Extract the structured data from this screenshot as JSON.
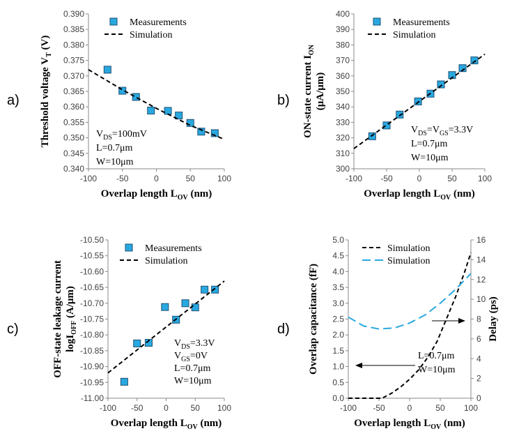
{
  "chart_data": [
    {
      "id": "a",
      "type": "scatter",
      "panel_label": "a)",
      "ylabel": "Threshold voltage V",
      "ylabel_sub": "T",
      "ylabel_unit": " (V)",
      "xlabel": "Overlap length L",
      "xlabel_sub": "OV",
      "xlabel_unit": " (nm)",
      "xlim": [
        -100,
        100
      ],
      "ylim": [
        0.34,
        0.39
      ],
      "xticks": [
        -100,
        -50,
        0,
        50,
        100
      ],
      "yticks": [
        0.34,
        0.345,
        0.35,
        0.355,
        0.36,
        0.365,
        0.37,
        0.375,
        0.38,
        0.385,
        0.39
      ],
      "ytick_decimals": 3,
      "legend": [
        "Measurements",
        "Simulation"
      ],
      "series": [
        {
          "name": "Measurements",
          "kind": "marker",
          "x": [
            -72,
            -50,
            -30,
            -8,
            17,
            33,
            50,
            66,
            86
          ],
          "y": [
            0.372,
            0.3652,
            0.3632,
            0.3588,
            0.3587,
            0.3572,
            0.3548,
            0.352,
            0.3515
          ]
        },
        {
          "name": "Simulation",
          "kind": "dashed",
          "x": [
            -100,
            -50,
            0,
            50,
            100
          ],
          "y": [
            0.372,
            0.3655,
            0.3595,
            0.354,
            0.3495
          ]
        }
      ],
      "annotations": [
        {
          "text": "V",
          "sub": "DS",
          "rest": "=100mV"
        },
        {
          "text": "L=0.7μm"
        },
        {
          "text": "W=10μm"
        }
      ]
    },
    {
      "id": "b",
      "type": "scatter",
      "panel_label": "b)",
      "ylabel": "ON-state current I",
      "ylabel_sub": "ON",
      "ylabel_line2": "(μA/μm)",
      "xlabel": "Overlap length L",
      "xlabel_sub": "OV",
      "xlabel_unit": " (nm)",
      "xlim": [
        -100,
        100
      ],
      "ylim": [
        300,
        400
      ],
      "xticks": [
        -100,
        -50,
        0,
        50,
        100
      ],
      "yticks": [
        300,
        310,
        320,
        330,
        340,
        350,
        360,
        370,
        380,
        390,
        400
      ],
      "ytick_decimals": 0,
      "legend": [
        "Measurements",
        "Simulation"
      ],
      "series": [
        {
          "name": "Measurements",
          "kind": "marker",
          "x": [
            -72,
            -50,
            -30,
            -2,
            17,
            33,
            50,
            66,
            84
          ],
          "y": [
            321,
            328,
            335,
            343.5,
            348.5,
            354.5,
            360.5,
            365,
            370
          ]
        },
        {
          "name": "Simulation",
          "kind": "dashed",
          "x": [
            -100,
            100
          ],
          "y": [
            313,
            374
          ]
        }
      ],
      "annotations": [
        {
          "text": "V",
          "sub": "DS",
          "rest": "=V",
          "sub2": "GS",
          "rest2": "=3.3V"
        },
        {
          "text": "L=0.7μm"
        },
        {
          "text": "W=10μm"
        }
      ]
    },
    {
      "id": "c",
      "type": "scatter",
      "panel_label": "c)",
      "ylabel": "OFF-state leakage current",
      "ylabel_line2": "logI",
      "ylabel_line2_sub": "OFF",
      "ylabel_line2_unit": " (A/μm)",
      "xlabel": "Overlap length L",
      "xlabel_sub": "OV",
      "xlabel_unit": " (nm)",
      "xlim": [
        -100,
        100
      ],
      "ylim": [
        -11.0,
        -10.5
      ],
      "xticks": [
        -100,
        -50,
        0,
        50,
        100
      ],
      "yticks": [
        -11.0,
        -10.95,
        -10.9,
        -10.85,
        -10.8,
        -10.75,
        -10.7,
        -10.65,
        -10.6,
        -10.55,
        -10.5
      ],
      "ytick_decimals": 2,
      "legend": [
        "Measurements",
        "Simulation"
      ],
      "series": [
        {
          "name": "Measurements",
          "kind": "marker",
          "x": [
            -72,
            -50,
            -30,
            -2,
            17,
            33,
            50,
            66,
            84
          ],
          "y": [
            -10.948,
            -10.827,
            -10.825,
            -10.712,
            -10.752,
            -10.7,
            -10.713,
            -10.657,
            -10.657
          ]
        },
        {
          "name": "Simulation",
          "kind": "dashed",
          "x": [
            -100,
            100
          ],
          "y": [
            -10.92,
            -10.63
          ]
        }
      ],
      "annotations": [
        {
          "text": "V",
          "sub": "DS",
          "rest": "=3.3V"
        },
        {
          "text": "V",
          "sub": "GS",
          "rest": "=0V"
        },
        {
          "text": "L=0.7μm"
        },
        {
          "text": "W=10μm"
        }
      ]
    },
    {
      "id": "d",
      "type": "line",
      "panel_label": "d)",
      "ylabel": "Overlap capacitance (fF)",
      "y2label": "Delay (ps)",
      "xlabel": "Overlap length L",
      "xlabel_sub": "OV",
      "xlabel_unit": " (nm)",
      "xlim": [
        -100,
        100
      ],
      "ylim": [
        0.0,
        5.0
      ],
      "y2lim": [
        0,
        16
      ],
      "xticks": [
        -100,
        -50,
        0,
        50,
        100
      ],
      "yticks": [
        0.0,
        0.5,
        1.0,
        1.5,
        2.0,
        2.5,
        3.0,
        3.5,
        4.0,
        4.5,
        5.0
      ],
      "ytick_decimals": 1,
      "y2ticks": [
        0,
        2,
        4,
        6,
        8,
        10,
        12,
        14,
        16
      ],
      "legend": [
        "Simulation",
        "Simulation"
      ],
      "series": [
        {
          "name": "Simulation",
          "kind": "dashed-black",
          "axis": "left",
          "x": [
            -100,
            -60,
            -45,
            -30,
            -15,
            0,
            15,
            30,
            45,
            60,
            75,
            90,
            100
          ],
          "y": [
            0.0,
            0.0,
            0.0,
            0.15,
            0.35,
            0.6,
            0.9,
            1.3,
            1.8,
            2.5,
            3.2,
            4.0,
            4.6
          ]
        },
        {
          "name": "Simulation",
          "kind": "dashed-blue",
          "axis": "right",
          "x": [
            -100,
            -75,
            -50,
            -25,
            0,
            25,
            50,
            75,
            100
          ],
          "y": [
            8.2,
            7.3,
            7.0,
            7.1,
            7.6,
            8.4,
            9.6,
            11.0,
            12.6
          ]
        }
      ],
      "annotations": [
        {
          "text": "L=0.7μm"
        },
        {
          "text": "W=10μm"
        }
      ]
    }
  ],
  "colors": {
    "marker_fill": "#29a8e0",
    "marker_stroke": "#1d4f73",
    "sim_black": "#000000",
    "sim_blue": "#29a8e0",
    "axis": "#888888"
  }
}
